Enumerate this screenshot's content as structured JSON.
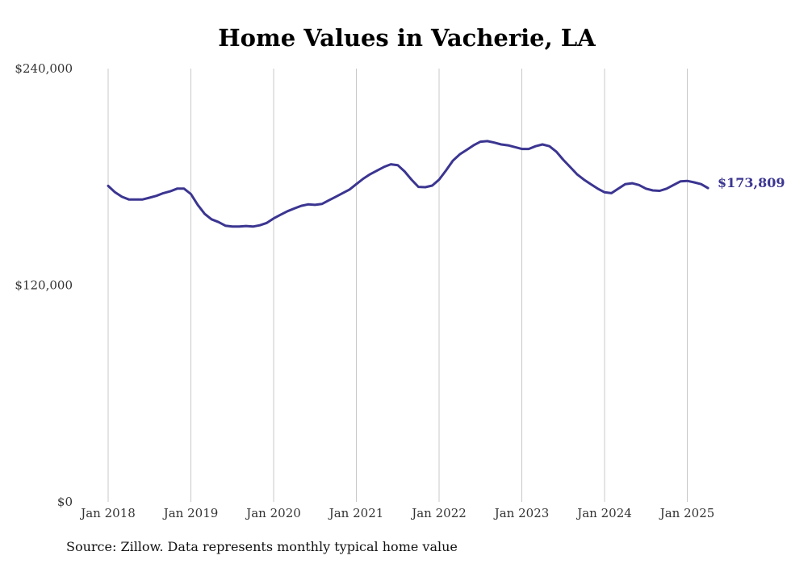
{
  "chart_data": {
    "type": "line",
    "title": "Home Values in Vacherie, LA",
    "source": "Source: Zillow. Data represents monthly typical home value",
    "end_label": "$173,809",
    "ylim": [
      0,
      240000
    ],
    "y_ticks": [
      {
        "value": 0,
        "label": "$0"
      },
      {
        "value": 120000,
        "label": "$120,000"
      },
      {
        "value": 240000,
        "label": "$240,000"
      }
    ],
    "x_ticks": [
      {
        "value": "2018-01",
        "label": "Jan 2018"
      },
      {
        "value": "2019-01",
        "label": "Jan 2019"
      },
      {
        "value": "2020-01",
        "label": "Jan 2020"
      },
      {
        "value": "2021-01",
        "label": "Jan 2021"
      },
      {
        "value": "2022-01",
        "label": "Jan 2022"
      },
      {
        "value": "2023-01",
        "label": "Jan 2023"
      },
      {
        "value": "2024-01",
        "label": "Jan 2024"
      },
      {
        "value": "2025-01",
        "label": "Jan 2025"
      }
    ],
    "grid": "vertical",
    "line_color": "#3b3591",
    "series": [
      {
        "x": [
          "2018-01",
          "2018-02",
          "2018-03",
          "2018-04",
          "2018-05",
          "2018-06",
          "2018-07",
          "2018-08",
          "2018-09",
          "2018-10",
          "2018-11",
          "2018-12",
          "2019-01",
          "2019-02",
          "2019-03",
          "2019-04",
          "2019-05",
          "2019-06",
          "2019-07",
          "2019-08",
          "2019-09",
          "2019-10",
          "2019-11",
          "2019-12",
          "2020-01",
          "2020-02",
          "2020-03",
          "2020-04",
          "2020-05",
          "2020-06",
          "2020-07",
          "2020-08",
          "2020-09",
          "2020-10",
          "2020-11",
          "2020-12",
          "2021-01",
          "2021-02",
          "2021-03",
          "2021-04",
          "2021-05",
          "2021-06",
          "2021-07",
          "2021-08",
          "2021-09",
          "2021-10",
          "2021-11",
          "2021-12",
          "2022-01",
          "2022-02",
          "2022-03",
          "2022-04",
          "2022-05",
          "2022-06",
          "2022-07",
          "2022-08",
          "2022-09",
          "2022-10",
          "2022-11",
          "2022-12",
          "2023-01",
          "2023-02",
          "2023-03",
          "2023-04",
          "2023-05",
          "2023-06",
          "2023-07",
          "2023-08",
          "2023-09",
          "2023-10",
          "2023-11",
          "2023-12",
          "2024-01",
          "2024-02",
          "2024-03",
          "2024-04",
          "2024-05",
          "2024-06",
          "2024-07",
          "2024-08",
          "2024-09",
          "2024-10",
          "2024-11",
          "2024-12",
          "2025-01",
          "2025-02",
          "2025-03",
          "2025-04"
        ],
        "values": [
          175000,
          171500,
          169000,
          167500,
          167500,
          167500,
          168500,
          169500,
          171000,
          172000,
          173500,
          173500,
          170500,
          164500,
          159500,
          156500,
          155000,
          153000,
          152500,
          152500,
          152800,
          152500,
          153200,
          154500,
          157000,
          159000,
          161000,
          162500,
          164000,
          164800,
          164500,
          165000,
          167000,
          169000,
          171000,
          173000,
          176000,
          179000,
          181500,
          183500,
          185500,
          187000,
          186500,
          183000,
          178500,
          174500,
          174300,
          175200,
          178500,
          183500,
          189000,
          192500,
          195000,
          197500,
          199500,
          199800,
          199000,
          198000,
          197500,
          196500,
          195500,
          195500,
          197000,
          198000,
          197000,
          194000,
          189500,
          185500,
          181500,
          178500,
          176000,
          173500,
          171500,
          171000,
          173500,
          176000,
          176500,
          175500,
          173500,
          172500,
          172300,
          173500,
          175500,
          177500,
          177800,
          177000,
          176000,
          173809
        ]
      }
    ]
  }
}
